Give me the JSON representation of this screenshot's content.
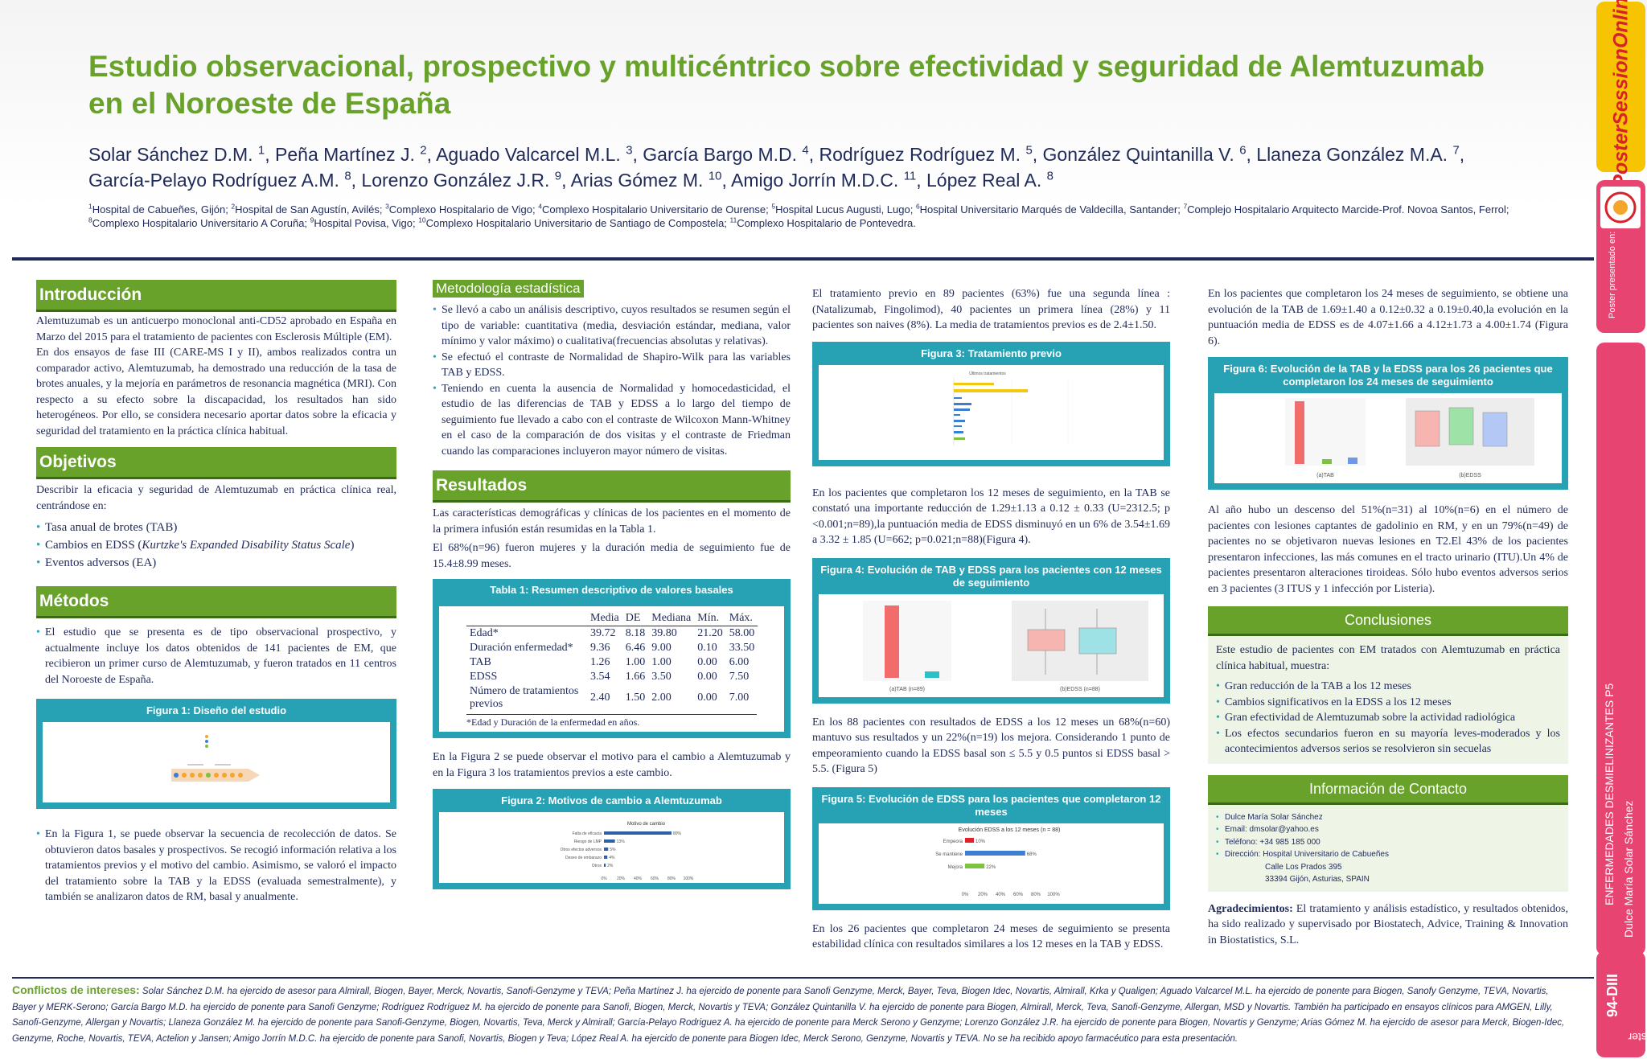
{
  "header": {
    "title": "Estudio observacional, prospectivo y multicéntrico sobre efectividad y seguridad de Alemtuzumab en el Noroeste de España",
    "authors": [
      {
        "name": "Solar Sánchez D.M.",
        "sup": "1"
      },
      {
        "name": "Peña Martínez J.",
        "sup": "2"
      },
      {
        "name": "Aguado Valcarcel M.L.",
        "sup": "3"
      },
      {
        "name": "García Bargo M.D.",
        "sup": "4"
      },
      {
        "name": "Rodríguez Rodríguez M.",
        "sup": "5"
      },
      {
        "name": "González Quintanilla V.",
        "sup": "6"
      },
      {
        "name": "Llaneza González M.A.",
        "sup": "7"
      },
      {
        "name": "García-Pelayo Rodríguez A.M.",
        "sup": "8"
      },
      {
        "name": "Lorenzo González J.R.",
        "sup": "9"
      },
      {
        "name": "Arias Gómez M.",
        "sup": "10"
      },
      {
        "name": "Amigo Jorrín M.D.C.",
        "sup": "11"
      },
      {
        "name": "López Real A.",
        "sup": "8"
      }
    ],
    "affiliations": [
      {
        "sup": "1",
        "text": "Hospital de Cabueñes, Gijón;"
      },
      {
        "sup": "2",
        "text": "Hospital de San Agustín, Avilés;"
      },
      {
        "sup": "3",
        "text": "Complexo Hospitalario de Vigo;"
      },
      {
        "sup": "4",
        "text": "Complexo Hospitalario Universitario de Ourense;"
      },
      {
        "sup": "5",
        "text": "Hospital Lucus Augusti, Lugo;"
      },
      {
        "sup": "6",
        "text": "Hospital Universitario Marqués de Valdecilla, Santander;"
      },
      {
        "sup": "7",
        "text": "Complejo Hospitalario Arquitecto Marcide-Prof. Novoa Santos, Ferrol;"
      },
      {
        "sup": "8",
        "text": "Complexo Hospitalario Universitario A Coruña;"
      },
      {
        "sup": "9",
        "text": "Hospital Povisa, Vigo;"
      },
      {
        "sup": "10",
        "text": "Complexo Hospitalario Universitario de Santiago de Compostela;"
      },
      {
        "sup": "11",
        "text": "Complexo Hospitalario de Pontevedra."
      }
    ]
  },
  "intro": {
    "heading": "Introducción",
    "p1": "Alemtuzumab es un anticuerpo monoclonal anti-CD52 aprobado en España en Marzo del 2015 para el tratamiento de pacientes con Esclerosis Múltiple (EM).",
    "p2": "En dos ensayos de fase III (CARE-MS I y II), ambos realizados contra un comparador activo, Alemtuzumab, ha demostrado una reducción de la tasa de brotes anuales, y la mejoría en parámetros de resonancia magnética (MRI). Con respecto a su efecto sobre la discapacidad, los resultados han sido heterogéneos. Por ello, se considera necesario aportar datos sobre la eficacia y seguridad del tratamiento en la práctica clínica habitual."
  },
  "objetivos": {
    "heading": "Objetivos",
    "p1": "Describir la eficacia y seguridad de Alemtuzumab en práctica clínica real, centrándose en:",
    "items": [
      "Tasa anual de brotes (TAB)",
      "Cambios en EDSS (",
      "Kurtzke's Expanded Disability Status Scale",
      ")",
      "Eventos adversos (EA)"
    ]
  },
  "metodos": {
    "heading": "Métodos",
    "b1": "El estudio que se presenta es de tipo observacional prospectivo, y actualmente incluye los datos obtenidos de 141 pacientes de EM, que recibieron un primer curso de Alemtuzumab, y fueron tratados en 11 centros del Noroeste de España.",
    "fig1_title": "Figura 1:  Diseño del estudio",
    "b2": "En la Figura 1, se puede observar la secuencia de recolección de datos. Se obtuvieron datos basales y prospectivos. Se recogió información relativa a los tratamientos previos y el motivo del cambio. Asimismo, se valoró el impacto del tratamiento sobre la TAB y la EDSS (evaluada semestralmente), y también se analizaron datos de RM, basal y anualmente."
  },
  "metodologia": {
    "heading": "Metodología estadística",
    "items": [
      "Se llevó a cabo un análisis descriptivo, cuyos resultados se resumen según el tipo de variable: cuantitativa (media, desviación estándar, mediana, valor mínimo y valor máximo) o cualitativa(frecuencias absolutas y relativas).",
      "Se efectuó el contraste de Normalidad de Shapiro-Wilk para las variables TAB y EDSS.",
      "Teniendo en cuenta la ausencia de Normalidad y homocedasticidad, el estudio de las diferencias de TAB y EDSS a lo largo del tiempo de seguimiento fue llevado a cabo con el contraste de Wilcoxon Mann-Whitney en el caso de la comparación de dos visitas y el contraste de Friedman cuando las comparaciones incluyeron mayor número de visitas."
    ]
  },
  "resultados": {
    "heading": "Resultados",
    "p1": "Las características demográficas y clínicas de los pacientes en el momento de la primera infusión están resumidas en la Tabla 1.",
    "p2": "El 68%(n=96) fueron mujeres y la duración media de seguimiento fue de 15.4±8.99 meses.",
    "table_title": "Tabla 1:  Resumen descriptivo de valores basales",
    "table_headers": [
      "",
      "Media",
      "DE",
      "Mediana",
      "Mín.",
      "Máx."
    ],
    "table_rows": [
      [
        "Edad*",
        "39.72",
        "8.18",
        "39.80",
        "21.20",
        "58.00"
      ],
      [
        "Duración enfermedad*",
        "9.36",
        "6.46",
        "9.00",
        "0.10",
        "33.50"
      ],
      [
        "TAB",
        "1.26",
        "1.00",
        "1.00",
        "0.00",
        "6.00"
      ],
      [
        "EDSS",
        "3.54",
        "1.66",
        "3.50",
        "0.00",
        "7.50"
      ],
      [
        "Número de tratamientos previos",
        "2.40",
        "1.50",
        "2.00",
        "0.00",
        "7.00"
      ]
    ],
    "table_note": "*Edad y Duración de la enfermedad en años.",
    "p3": "En la Figura 2 se puede observar el motivo para el cambio a Alemtuzumab y en la Figura 3 los tratamientos previos a este cambio.",
    "fig2_title": "Figura 2:  Motivos de cambio a Alemtuzumab",
    "fig2_chart_title": "Motivo de cambio",
    "fig2_ticks": [
      "0%",
      "20%",
      "40%",
      "60%",
      "80%",
      "100%"
    ]
  },
  "col3": {
    "p1": "El tratamiento previo en 89 pacientes (63%) fue una segunda línea : (Natalizumab, Fingolimod), 40 pacientes un primera línea (28%) y 11 pacientes son naives (8%). La media de tratamientos previos es de 2.4±1.50.",
    "fig3_title": "Figura 3:  Tratamiento previo",
    "fig3_chart_title": "Últimos tratamientos",
    "p2": "En los pacientes que completaron los 12 meses de seguimiento, en la TAB se constató una importante reducción de 1.29±1.13 a 0.12 ± 0.33 (U=2312.5; p <0.001;n=89),la puntuación media de EDSS disminuyó en un 6% de 3.54±1.69 a 3.32 ± 1.85 (U=662; p=0.021;n=88)(Figura 4).",
    "fig4_title": "Figura 4:  Evolución de TAB y EDSS para los pacientes con 12 meses de seguimiento",
    "fig4_cap_a": "(a)TAB (n=89)",
    "fig4_cap_b": "(b)EDSS (n=88)",
    "p3": "En los 88 pacientes con resultados de EDSS a los 12 meses un 68%(n=60) mantuvo sus resultados y un 22%(n=19) los mejora. Considerando 1 punto de empeoramiento cuando la EDSS basal son ≤ 5.5 y 0.5 puntos si EDSS basal > 5.5. (Figura 5)",
    "fig5_title": "Figura 5:  Evolución de EDSS para los pacientes que completaron 12 meses",
    "fig5_chart_title": "Evolución EDSS a los 12 meses (n = 88)",
    "fig5_ticks": [
      "0%",
      "20%",
      "40%",
      "60%",
      "80%",
      "100%"
    ],
    "p4": "En los 26 pacientes que completaron 24 meses de seguimiento se presenta estabilidad clínica con resultados similares a los 12 meses en la TAB y EDSS."
  },
  "col4": {
    "p1": "En los pacientes que completaron los 24 meses de seguimiento, se obtiene una evolución de la TAB de 1.69±1.40 a 0.12±0.32 a 0.19±0.40,la evolución en la puntuación media de EDSS es de 4.07±1.66 a 4.12±1.73 a 4.00±1.74 (Figura 6).",
    "fig6_title": "Figura 6:  Evolución de la TAB y la EDSS para los 26 pacientes que completaron los 24 meses de seguimiento",
    "fig6_cap_a": "(a)TAB",
    "fig6_cap_b": "(b)EDSS",
    "p2": "Al año hubo un descenso del 51%(n=31) al 10%(n=6) en el número de pacientes con lesiones captantes de gadolinio en RM, y en un 79%(n=49) de pacientes no se objetivaron nuevas lesiones en T2.El 43% de los pacientes presentaron infecciones, las más comunes en el tracto urinario (ITU).Un 4% de pacientes presentaron alteraciones tiroideas. Sólo hubo eventos adversos serios en 3 pacientes (3 ITUS y 1 infección por Listeria).",
    "conclusiones_heading": "Conclusiones",
    "conclusiones_intro": "Este estudio de pacientes con EM tratados con Alemtuzumab en práctica clínica habitual, muestra:",
    "conclusiones_items": [
      "Gran reducción de la TAB a los 12 meses",
      "Cambios significativos en la EDSS a los 12 meses",
      "Gran efectividad de Alemtuzumab sobre la actividad radiológica",
      "Los efectos secundarios fueron en su mayoría leves-moderados y los acontecimientos adversos serios se resolvieron sin secuelas"
    ],
    "contacto_heading": "Información de Contacto",
    "contacto_items": [
      "Dulce María Solar Sánchez",
      "Email: dmsolar@yahoo.es",
      "Teléfono: +34 985 185 000",
      "Dirección: Hospital Universitario de Cabueñes"
    ],
    "contacto_addr": [
      "Calle Los Prados 395",
      "33394 Gijón, Asturias, SPAIN"
    ],
    "agradecimientos_label": "Agradecimientos:",
    "agradecimientos_text": "El tratamiento y análisis estadístico, y resultados obtenidos, ha sido realizado y supervisado por Biostatech, Advice, Training & Innovation in Biostatistics, S.L."
  },
  "footer": {
    "coi_label": "Conflictos de intereses:",
    "coi_text": "Solar Sánchez D.M. ha ejercido de asesor para Almirall, Biogen, Bayer, Merck, Novartis, Sanofi-Genzyme y TEVA; Peña Martínez J. ha ejercido de ponente para Sanofi Genzyme, Merck, Bayer, Teva, Biogen Idec, Novartis, Almirall, Krka y Qualigen; Aguado Valcarcel M.L. ha ejercido de ponente para Biogen, Sanofy Genzyme, TEVA, Novartis, Bayer y MERK-Serono; García Bargo M.D. ha ejercido de ponente para Sanofi Genzyme; Rodríguez Rodríguez M. ha ejercido de ponente para Sanofi, Biogen, Merck, Novartis y TEVA; González Quintanilla V. ha ejercido de ponente para Biogen, Almirall, Merck, Teva, Sanofi-Genzyme, Allergan, MSD y Novartis. También ha participado en ensayos clínicos para AMGEN, Lilly, Sanofi-Genzyme, Allergan y Novartis; Llaneza González M. ha ejercido de ponente para Sanofi-Genzyme, Biogen, Novartis, Teva, Merck y Almirall; García-Pelayo Rodriguez A. ha ejercido de ponente para Merck Serono y Genzyme; Lorenzo González J.R. ha ejercido de ponente para Biogen, Novartis y Genzyme; Arias Gómez M. ha ejercido de asesor para Merck, Biogen-Idec, Genzyme, Roche, Novartis, TEVA, Actelion y Jansen; Amigo Jorrín M.D.C. ha ejercido de ponente para Sanofi, Novartis, Biogen y Teva; López Real A. ha ejercido de ponente para Biogen Idec, Merck Serono, Genzyme, Novartis y TEVA. No se ha recibido apoyo farmacéutico para esta presentación."
  },
  "sidebar": {
    "logo": "PosterSessionOnline",
    "presented": "Poster presentado en:",
    "category": "ENFERMEDADES DESMIELINIZANTES P5",
    "author": "Dulce María Solar Sánchez",
    "code": "94-DIII",
    "brand": "Poster"
  },
  "colors": {
    "green": "#68a22a",
    "teal": "#27a2b5",
    "navy": "#1f2a5a",
    "pink": "#e84471",
    "yellow": "#f6c400"
  },
  "chart_data": [
    {
      "type": "bar",
      "title": "Motivo de cambio",
      "orientation": "horizontal",
      "categories": [
        "Falta de eficacia",
        "Riesgo de LMP",
        "Otros efectos adversos",
        "Deseo de embarazo",
        "Otros"
      ],
      "values": [
        80,
        13,
        5,
        4,
        2
      ],
      "value_labels": [
        "80%",
        "13%",
        "5%",
        "4%",
        "2%"
      ],
      "xlim": [
        0,
        100
      ]
    },
    {
      "type": "bar",
      "title": "Evolución EDSS a los 12 meses (n = 88)",
      "orientation": "horizontal",
      "categories": [
        "Empeora",
        "Se mantiene",
        "Mejora"
      ],
      "values": [
        10,
        68,
        22
      ],
      "value_labels": [
        "10%",
        "68%",
        "22%"
      ],
      "colors": [
        "#e0202a",
        "#3a7fd0",
        "#7dc242"
      ],
      "xlim": [
        0,
        100
      ]
    }
  ]
}
